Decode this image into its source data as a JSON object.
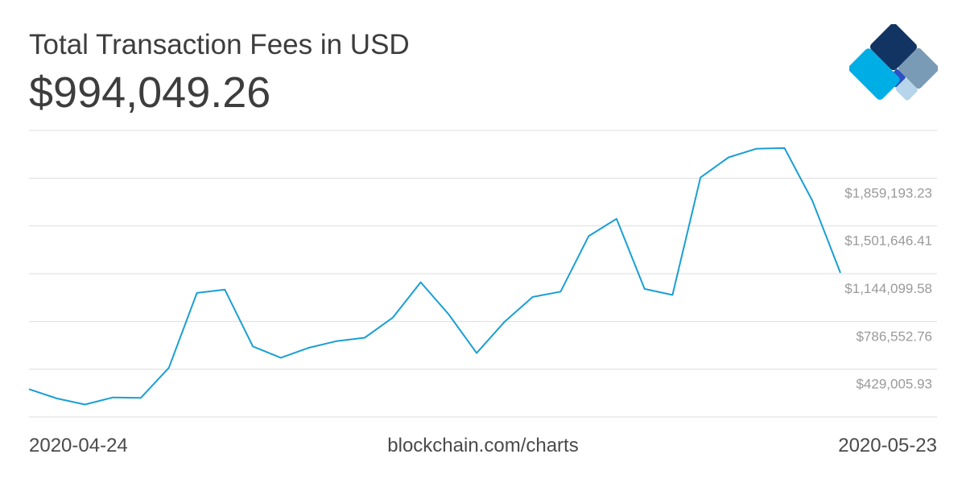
{
  "header": {
    "title": "Total Transaction Fees in USD",
    "value": "$994,049.26"
  },
  "footer": {
    "start_date": "2020-04-24",
    "source": "blockchain.com/charts",
    "end_date": "2020-05-23"
  },
  "logo": {
    "name": "blockchain-logo",
    "colors": [
      "#7a9bb5",
      "#123463",
      "#2c4fc2",
      "#b7d5ea",
      "#00aee6"
    ]
  },
  "colors": {
    "line": "#1a9fd5",
    "grid": "#dddddd",
    "tick_label": "#9a9a9a"
  },
  "chart_data": {
    "type": "line",
    "title": "Total Transaction Fees in USD",
    "xlabel": "",
    "ylabel": "",
    "grid": true,
    "y_axis_position": "right",
    "y_ticks": [
      429005.93,
      786552.76,
      1144099.58,
      1501646.41,
      1859193.23
    ],
    "y_tick_labels": [
      "$429,005.93",
      "$786,552.76",
      "$1,144,099.58",
      "$1,501,646.41",
      "$1,859,193.23"
    ],
    "ylim": [
      71459.1,
      2216740.1
    ],
    "x": [
      "2020-04-24",
      "2020-04-25",
      "2020-04-26",
      "2020-04-27",
      "2020-04-28",
      "2020-04-29",
      "2020-04-30",
      "2020-05-01",
      "2020-05-02",
      "2020-05-03",
      "2020-05-04",
      "2020-05-05",
      "2020-05-06",
      "2020-05-07",
      "2020-05-08",
      "2020-05-09",
      "2020-05-10",
      "2020-05-11",
      "2020-05-12",
      "2020-05-13",
      "2020-05-14",
      "2020-05-15",
      "2020-05-16",
      "2020-05-17",
      "2020-05-18",
      "2020-05-19",
      "2020-05-20",
      "2020-05-21",
      "2020-05-22",
      "2020-05-23"
    ],
    "series": [
      {
        "values": [
          280000,
          210000,
          165000,
          218000,
          215000,
          440000,
          1000000,
          1025000,
          600000,
          515000,
          590000,
          640000,
          665000,
          815000,
          1080000,
          840000,
          550000,
          785000,
          970000,
          1010000,
          1425000,
          1555000,
          1030000,
          985000,
          1865000,
          2015000,
          2080000,
          2085000,
          1690000,
          1150000
        ]
      }
    ]
  }
}
